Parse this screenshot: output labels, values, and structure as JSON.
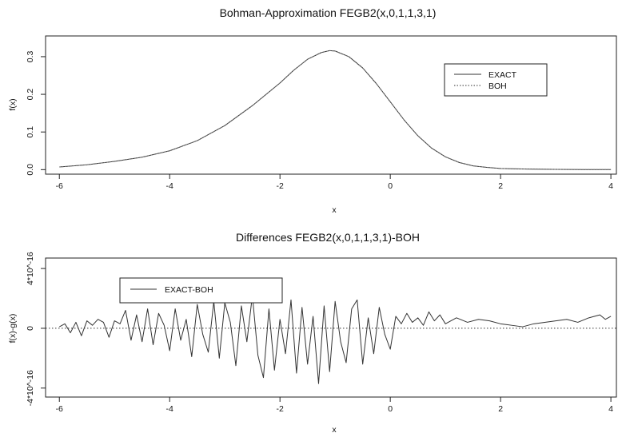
{
  "chart_data": [
    {
      "type": "line",
      "title": "Bohman-Approximation FEGB2(x,0,1,1,3,1)",
      "xlabel": "x",
      "ylabel": "f(x)",
      "xlim": [
        -6.25,
        4.1
      ],
      "ylim": [
        -0.012,
        0.355
      ],
      "xticks": [
        -6,
        -4,
        -2,
        0,
        2,
        4
      ],
      "xtick_labels": [
        "-6",
        "-4",
        "-2",
        "0",
        "2",
        "4"
      ],
      "yticks": [
        0.0,
        0.1,
        0.2,
        0.3
      ],
      "ytick_labels": [
        "0.0",
        "0.1",
        "0.2",
        "0.3"
      ],
      "legend_position": "top-right",
      "series": [
        {
          "name": "EXACT",
          "style": "solid",
          "x": [
            -6,
            -5.5,
            -5,
            -4.5,
            -4,
            -3.5,
            -3,
            -2.5,
            -2,
            -1.75,
            -1.5,
            -1.25,
            -1.1,
            -1,
            -0.75,
            -0.5,
            -0.25,
            0,
            0.25,
            0.5,
            0.75,
            1,
            1.25,
            1.5,
            1.75,
            2,
            2.5,
            3,
            3.5,
            4
          ],
          "y": [
            0.007,
            0.013,
            0.022,
            0.033,
            0.05,
            0.077,
            0.117,
            0.17,
            0.23,
            0.264,
            0.293,
            0.311,
            0.316,
            0.315,
            0.3,
            0.27,
            0.228,
            0.18,
            0.132,
            0.09,
            0.057,
            0.034,
            0.019,
            0.01,
            0.006,
            0.003,
            0.0015,
            0.0007,
            0.0003,
            0.0001
          ]
        },
        {
          "name": "BOH",
          "style": "dotted",
          "x": [
            -6,
            -5.5,
            -5,
            -4.5,
            -4,
            -3.5,
            -3,
            -2.5,
            -2,
            -1.75,
            -1.5,
            -1.25,
            -1.1,
            -1,
            -0.75,
            -0.5,
            -0.25,
            0,
            0.25,
            0.5,
            0.75,
            1,
            1.25,
            1.5,
            1.75,
            2,
            2.5,
            3,
            3.5,
            4
          ],
          "y": [
            0.007,
            0.013,
            0.022,
            0.033,
            0.05,
            0.077,
            0.117,
            0.17,
            0.23,
            0.264,
            0.293,
            0.311,
            0.316,
            0.315,
            0.3,
            0.27,
            0.228,
            0.18,
            0.132,
            0.09,
            0.057,
            0.034,
            0.019,
            0.01,
            0.006,
            0.003,
            0.0015,
            0.0007,
            0.0003,
            0.0001
          ]
        }
      ]
    },
    {
      "type": "line",
      "title": "Differences FEGB2(x,0,1,1,3,1)-BOH",
      "xlabel": "x",
      "ylabel": "f(x)-g(x)",
      "xlim": [
        -6.25,
        4.1
      ],
      "ylim": [
        -4.6e-16,
        4.7e-16
      ],
      "xticks": [
        -6,
        -4,
        -2,
        0,
        2,
        4
      ],
      "xtick_labels": [
        "-6",
        "-4",
        "-2",
        "0",
        "2",
        "4"
      ],
      "yticks": [
        -4e-16,
        0,
        4e-16
      ],
      "ytick_labels": [
        "-4*10^-16",
        "0",
        "4*10^-16"
      ],
      "reference_line": {
        "y": 0,
        "style": "dotted"
      },
      "legend_position": "top-left",
      "series": [
        {
          "name": "EXACT-BOH",
          "style": "solid",
          "x": [
            -6,
            -5.9,
            -5.8,
            -5.7,
            -5.6,
            -5.5,
            -5.4,
            -5.3,
            -5.2,
            -5.1,
            -5,
            -4.9,
            -4.8,
            -4.7,
            -4.6,
            -4.5,
            -4.4,
            -4.3,
            -4.2,
            -4.1,
            -4,
            -3.9,
            -3.8,
            -3.7,
            -3.6,
            -3.5,
            -3.4,
            -3.3,
            -3.2,
            -3.1,
            -3,
            -2.9,
            -2.8,
            -2.7,
            -2.6,
            -2.5,
            -2.4,
            -2.3,
            -2.2,
            -2.1,
            -2,
            -1.9,
            -1.8,
            -1.7,
            -1.6,
            -1.5,
            -1.4,
            -1.3,
            -1.2,
            -1.1,
            -1,
            -0.9,
            -0.8,
            -0.7,
            -0.6,
            -0.5,
            -0.4,
            -0.3,
            -0.2,
            -0.1,
            0,
            0.1,
            0.2,
            0.3,
            0.4,
            0.5,
            0.6,
            0.7,
            0.8,
            0.9,
            1,
            1.2,
            1.4,
            1.6,
            1.8,
            2,
            2.2,
            2.4,
            2.6,
            2.8,
            3,
            3.2,
            3.4,
            3.6,
            3.8,
            3.9,
            4
          ],
          "y": [
            1e-17,
            3e-17,
            -3e-17,
            4e-17,
            -5e-17,
            5e-17,
            2e-17,
            6e-17,
            4e-17,
            -6e-17,
            5e-17,
            3e-17,
            1.2e-16,
            -8e-17,
            9e-17,
            -9e-17,
            1.3e-16,
            -1.1e-16,
            1e-16,
            2e-17,
            -1.5e-16,
            1.3e-16,
            -8e-17,
            6e-17,
            -1.9e-16,
            1.6e-16,
            -4e-17,
            -1.6e-16,
            1.8e-16,
            -2e-16,
            1.7e-16,
            4e-17,
            -2.5e-16,
            1.5e-16,
            -9e-17,
            2.2e-16,
            -1.8e-16,
            -3.3e-16,
            1.3e-16,
            -2.8e-16,
            6e-17,
            -1.7e-16,
            1.9e-16,
            -3e-16,
            1.4e-16,
            -2.4e-16,
            8e-17,
            -3.7e-16,
            1.5e-16,
            -2.9e-16,
            1.8e-16,
            -9e-17,
            -2.3e-16,
            1.3e-16,
            1.9e-16,
            -2.4e-16,
            7e-17,
            -1.7e-16,
            1.4e-16,
            -4e-17,
            -1.4e-16,
            8e-17,
            3e-17,
            1e-16,
            4e-17,
            7e-17,
            2e-17,
            1.1e-16,
            5e-17,
            9e-17,
            3e-17,
            7e-17,
            4e-17,
            6e-17,
            5e-17,
            3e-17,
            2e-17,
            1e-17,
            3e-17,
            4e-17,
            5e-17,
            6e-17,
            4e-17,
            7e-17,
            9e-17,
            6e-17,
            8e-17
          ]
        }
      ]
    }
  ]
}
